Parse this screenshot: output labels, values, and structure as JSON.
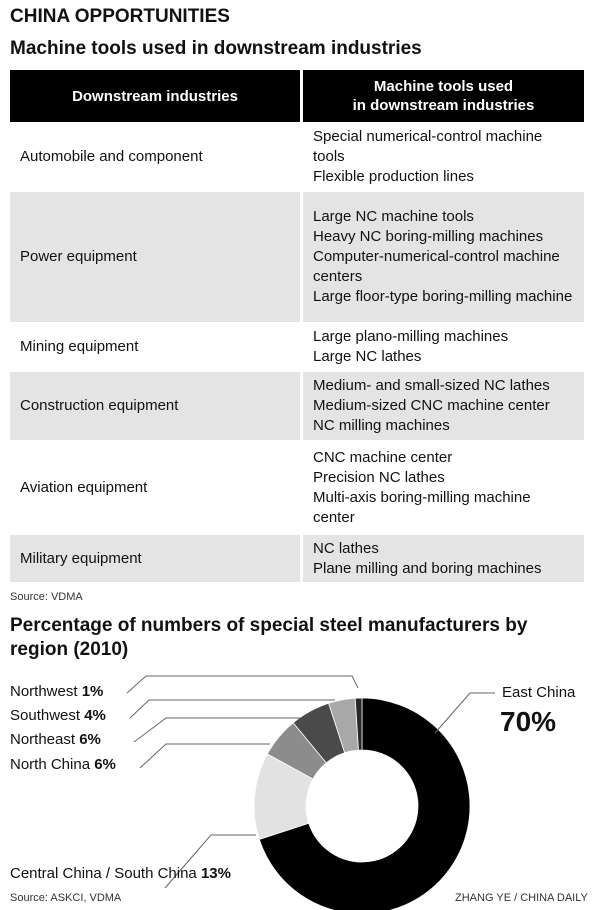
{
  "kicker": "CHINA OPPORTUNITIES",
  "table_title": "Machine tools used in downstream industries",
  "table": {
    "headers": [
      "Downstream industries",
      "Machine tools used\nin downstream industries"
    ],
    "rows": [
      {
        "industry": "Automobile and component",
        "tools": "Special numerical-control machine tools\nFlexible production lines"
      },
      {
        "industry": "Power equipment",
        "tools": "Large NC machine tools\nHeavy NC boring-milling machines\nComputer-numerical-control machine centers\nLarge floor-type boring-milling machine"
      },
      {
        "industry": "Mining equipment",
        "tools": "Large plano-milling machines\nLarge NC lathes"
      },
      {
        "industry": "Construction equipment",
        "tools": "Medium- and small-sized NC lathes\nMedium-sized CNC machine center\nNC milling machines"
      },
      {
        "industry": "Aviation equipment",
        "tools": "CNC machine center\nPrecision NC lathes\nMulti-axis boring-milling machine center"
      },
      {
        "industry": "Military equipment",
        "tools": "NC lathes\nPlane milling and boring machines"
      }
    ],
    "source": "Source: VDMA"
  },
  "chart_data": {
    "type": "pie",
    "donut": true,
    "title": "Percentage of numbers of special steel manufacturers by region (2010)",
    "slices": [
      {
        "label": "East China",
        "value": 70,
        "display": "70%",
        "color": "#000000"
      },
      {
        "label": "Central China / South China",
        "value": 13,
        "display": "13%",
        "color": "#e2e2e2"
      },
      {
        "label": "North China",
        "value": 6,
        "display": "6%",
        "color": "#8c8c8c"
      },
      {
        "label": "Northeast",
        "value": 6,
        "display": "6%",
        "color": "#4a4a4a"
      },
      {
        "label": "Southwest",
        "value": 4,
        "display": "4%",
        "color": "#a8a8a8"
      },
      {
        "label": "Northwest",
        "value": 1,
        "display": "1%",
        "color": "#262626"
      }
    ],
    "source": "Source: ASKCI, VDMA"
  },
  "credit": "ZHANG YE / CHINA DAILY"
}
